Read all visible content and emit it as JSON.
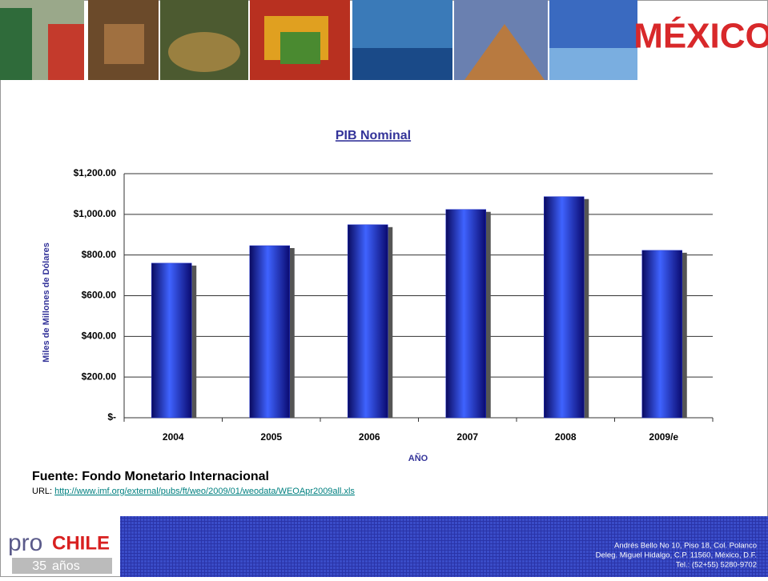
{
  "header": {
    "logo": "MÉXICO"
  },
  "chart_data": {
    "type": "bar",
    "title": "PIB Nominal",
    "x_label": "AÑO",
    "y_label": "Miles de Millones de Dólares",
    "categories": [
      "2004",
      "2005",
      "2006",
      "2007",
      "2008",
      "2009/e"
    ],
    "values": [
      760,
      846,
      949,
      1024,
      1087,
      823
    ],
    "color": "#2233cc",
    "ylim": [
      0,
      1200
    ],
    "yticks": [
      {
        "value": 0,
        "label": "$-"
      },
      {
        "value": 200,
        "label": "$200.00"
      },
      {
        "value": 400,
        "label": "$400.00"
      },
      {
        "value": 600,
        "label": "$600.00"
      },
      {
        "value": 800,
        "label": "$800.00"
      },
      {
        "value": 1000,
        "label": "$1,000.00"
      },
      {
        "value": 1200,
        "label": "$1,200.00"
      }
    ],
    "grid": true
  },
  "source": {
    "text": "Fuente: Fondo Monetario Internacional",
    "url_label": "URL: ",
    "url": "http://www.imf.org/external/pubs/ft/weo/2009/01/weodata/WEOApr2009all.xls"
  },
  "footer": {
    "brand_pro": "pro",
    "brand_chile": "CHILE",
    "years": "35",
    "years_label": "años",
    "address": [
      "Andrés Bello No 10, Piso 18, Col. Polanco",
      "Deleg. Miguel Hidalgo, C.P. 11560, México, D.F.",
      "Tel.: (52+55) 5280-9702"
    ]
  }
}
